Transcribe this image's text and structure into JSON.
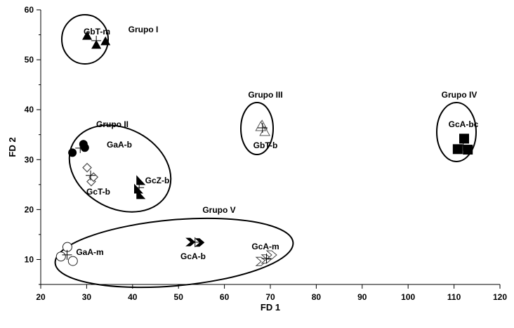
{
  "chart_data": {
    "type": "scatter",
    "title": "",
    "xlabel": "FD 1",
    "ylabel": "FD 2",
    "xlim": [
      20,
      120
    ],
    "ylim": [
      5,
      60
    ],
    "xticks": [
      20,
      30,
      40,
      50,
      60,
      70,
      80,
      90,
      100,
      110,
      120
    ],
    "yticks": [
      10,
      20,
      30,
      40,
      50,
      60
    ],
    "grid": false,
    "groups": [
      {
        "name": "Grupo I"
      },
      {
        "name": "Grupo II"
      },
      {
        "name": "Grupo III"
      },
      {
        "name": "Grupo IV"
      },
      {
        "name": "Grupo V"
      }
    ],
    "series": [
      {
        "name": "GbT-m",
        "marker": "triangle-filled",
        "points": [
          [
            30.1,
            54.8
          ],
          [
            32.1,
            53.0
          ],
          [
            34.1,
            53.7
          ]
        ]
      },
      {
        "name": "GaA-b",
        "marker": "circle-filled",
        "points": [
          [
            26.9,
            31.4
          ],
          [
            29.3,
            33.1
          ],
          [
            29.6,
            32.4
          ]
        ]
      },
      {
        "name": "GcT-b",
        "marker": "diamond-open",
        "points": [
          [
            30.1,
            28.4
          ],
          [
            31.0,
            25.6
          ],
          [
            31.5,
            26.5
          ]
        ]
      },
      {
        "name": "GcZ-b",
        "marker": "half-triangle-filled",
        "points": [
          [
            41.6,
            25.9
          ],
          [
            41.1,
            24.2
          ],
          [
            41.6,
            23.1
          ]
        ]
      },
      {
        "name": "GbT-b",
        "marker": "triangle-open",
        "points": [
          [
            68.2,
            36.9
          ],
          [
            68.8,
            35.6
          ],
          [
            67.9,
            36.6
          ]
        ]
      },
      {
        "name": "GcA-bc",
        "marker": "square-filled",
        "points": [
          [
            112.2,
            34.2
          ],
          [
            110.8,
            32.1
          ],
          [
            113.0,
            32.0
          ]
        ]
      },
      {
        "name": "GcA-b",
        "marker": "chevron-filled",
        "points": [
          [
            52.6,
            13.5
          ],
          [
            54.6,
            13.4
          ]
        ]
      },
      {
        "name": "GaA-m",
        "marker": "circle-open",
        "points": [
          [
            25.8,
            12.5
          ],
          [
            24.4,
            10.6
          ],
          [
            27.0,
            9.7
          ]
        ]
      },
      {
        "name": "GcA-m",
        "marker": "chevron-open",
        "points": [
          [
            68.0,
            9.6
          ],
          [
            69.2,
            10.1
          ],
          [
            70.3,
            10.9
          ]
        ]
      }
    ]
  }
}
